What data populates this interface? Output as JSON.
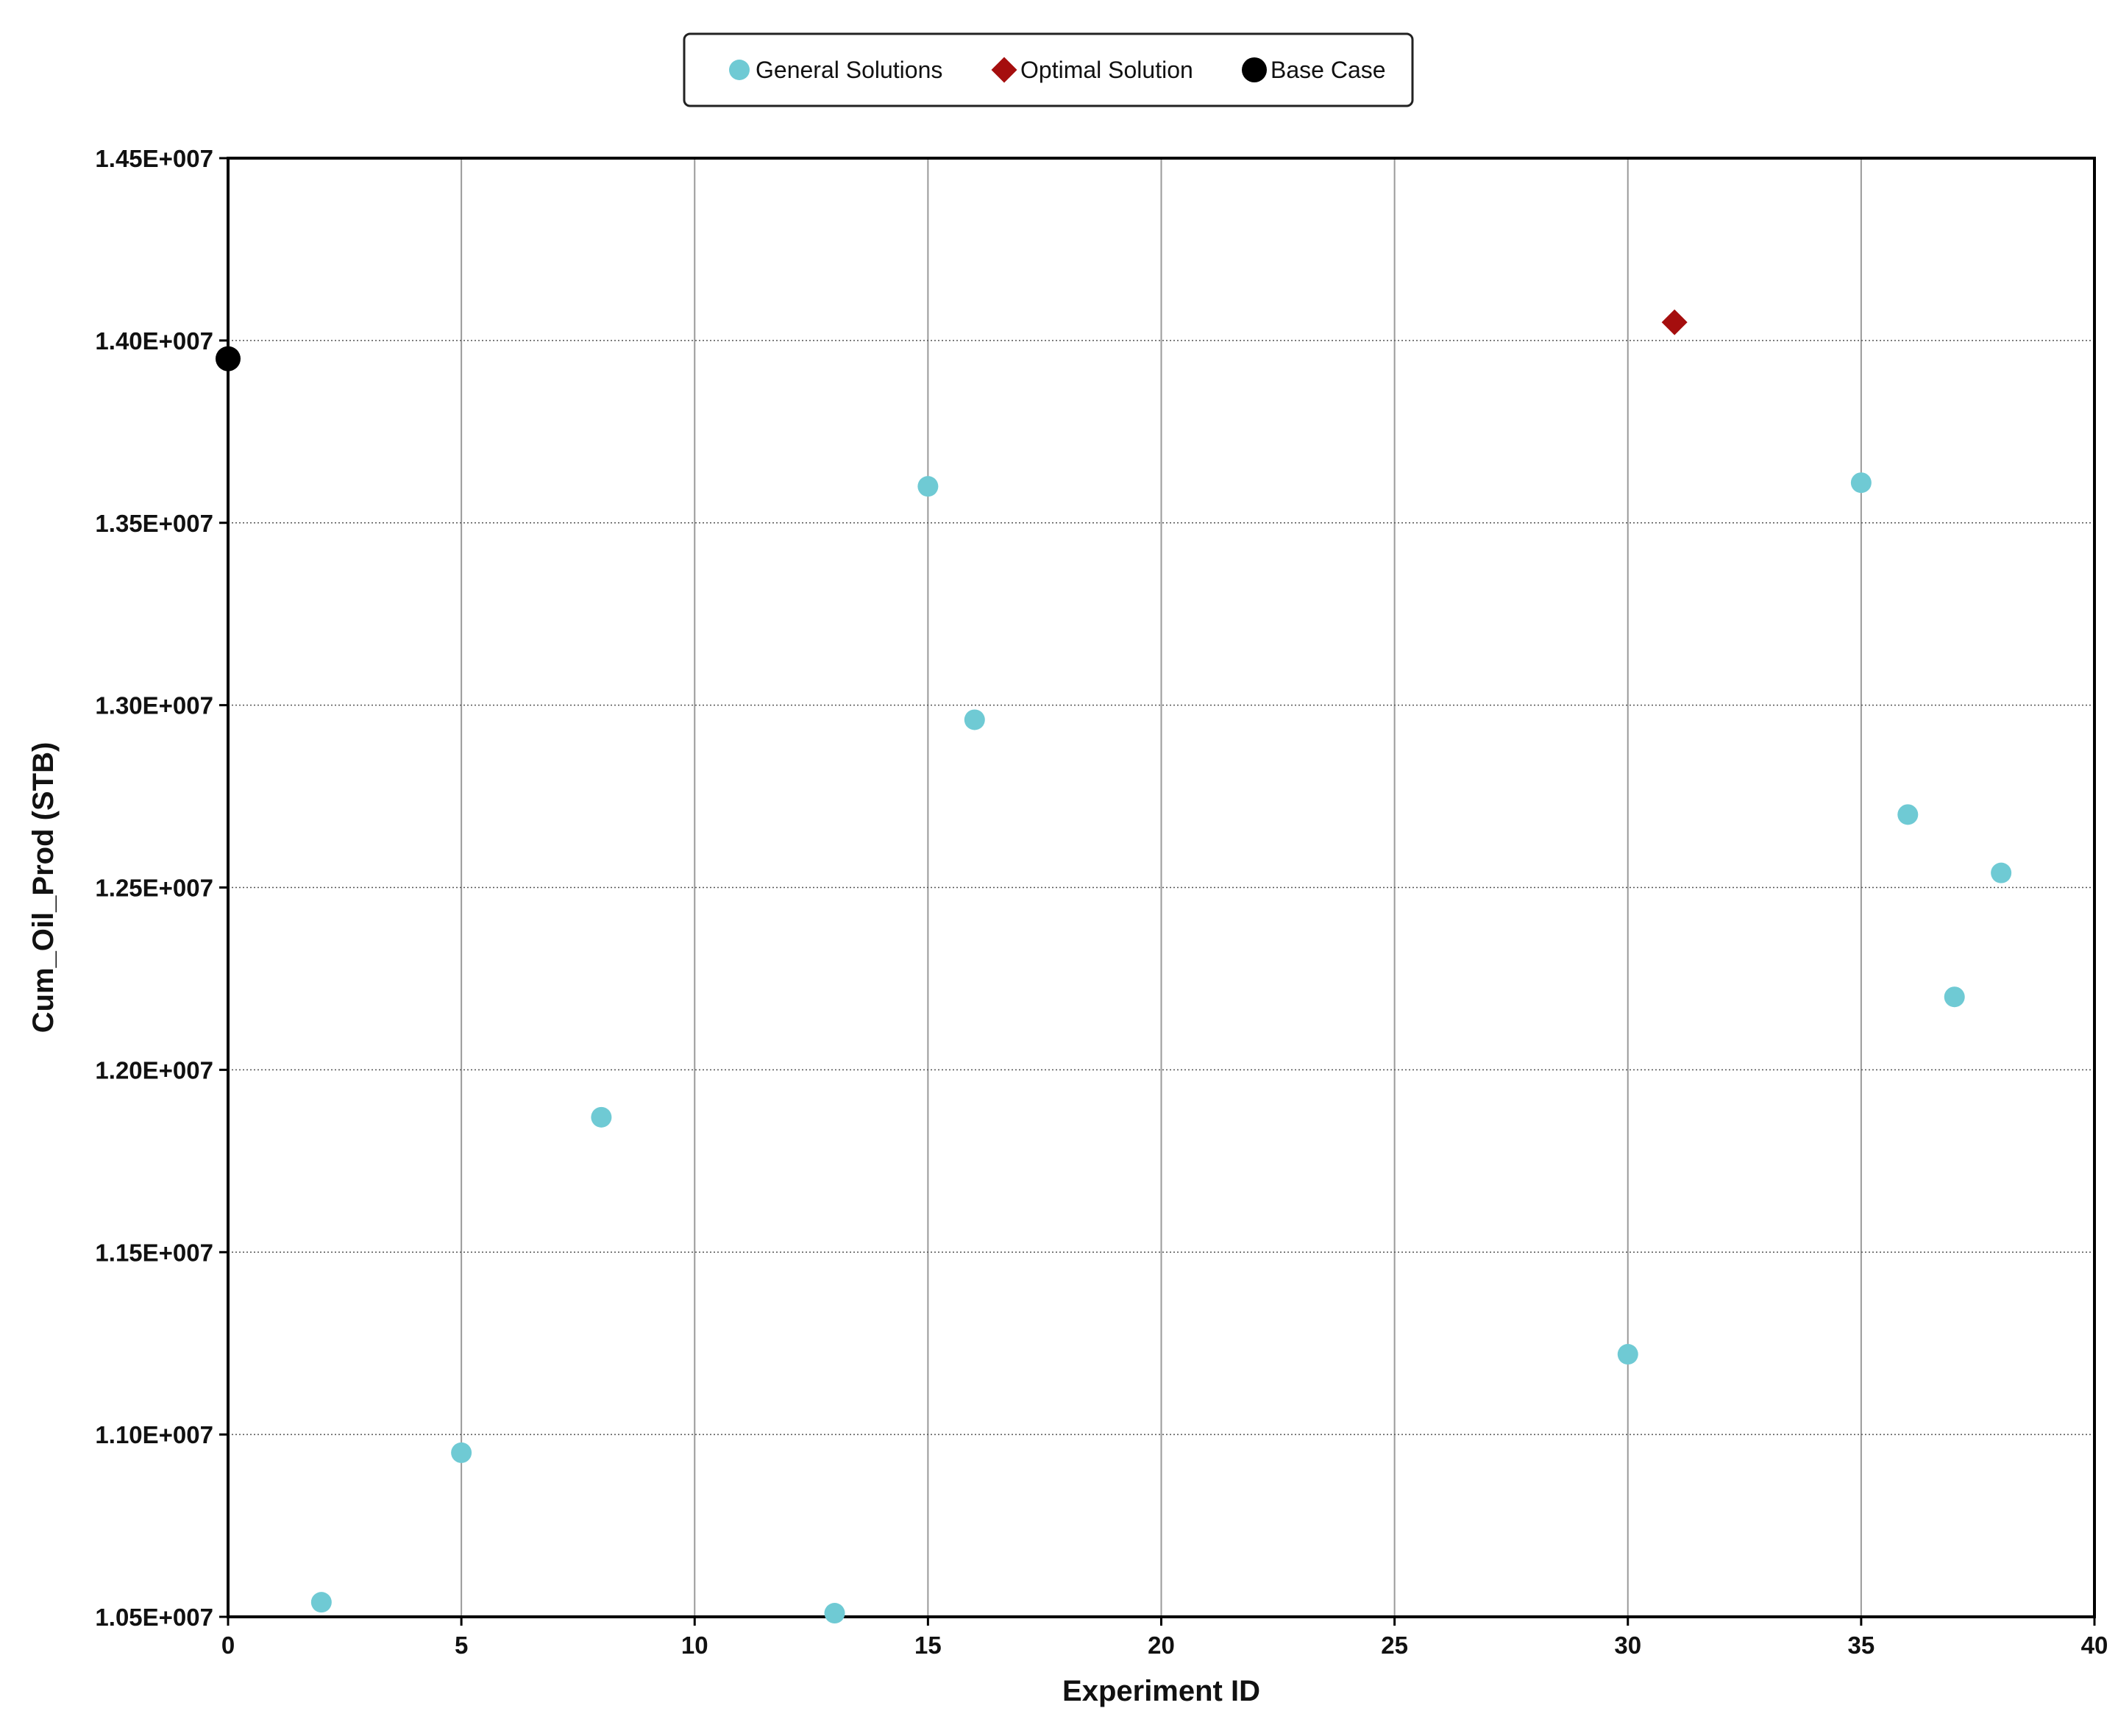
{
  "chart_data": {
    "type": "scatter",
    "title": "",
    "xlabel": "Experiment ID",
    "ylabel": "Cum_Oil_Prod (STB)",
    "xlim": [
      0,
      40
    ],
    "ylim": [
      10500000,
      14500000
    ],
    "x_ticks": [
      0,
      5,
      10,
      15,
      20,
      25,
      30,
      35,
      40
    ],
    "y_ticks": [
      10500000,
      11000000,
      11500000,
      12000000,
      12500000,
      13000000,
      13500000,
      14000000,
      14500000
    ],
    "y_tick_labels": [
      "1.05E+007",
      "1.10E+007",
      "1.15E+007",
      "1.20E+007",
      "1.25E+007",
      "1.30E+007",
      "1.35E+007",
      "1.40E+007",
      "1.45E+007"
    ],
    "grid": true,
    "legend_position": "top-center",
    "series": [
      {
        "name": "General Solutions",
        "marker": "circle",
        "color": "#6fcad4",
        "x": [
          2,
          5,
          8,
          13,
          15,
          16,
          30,
          35,
          36,
          37,
          38
        ],
        "y": [
          10540000,
          10950000,
          11870000,
          10510000,
          13600000,
          12960000,
          11220000,
          13610000,
          12700000,
          12200000,
          12540000
        ]
      },
      {
        "name": "Optimal Solution",
        "marker": "diamond",
        "color": "#a50e0e",
        "x": [
          31
        ],
        "y": [
          14050000
        ]
      },
      {
        "name": "Base Case",
        "marker": "circle",
        "color": "#000000",
        "x": [
          0
        ],
        "y": [
          13950000
        ]
      }
    ]
  }
}
